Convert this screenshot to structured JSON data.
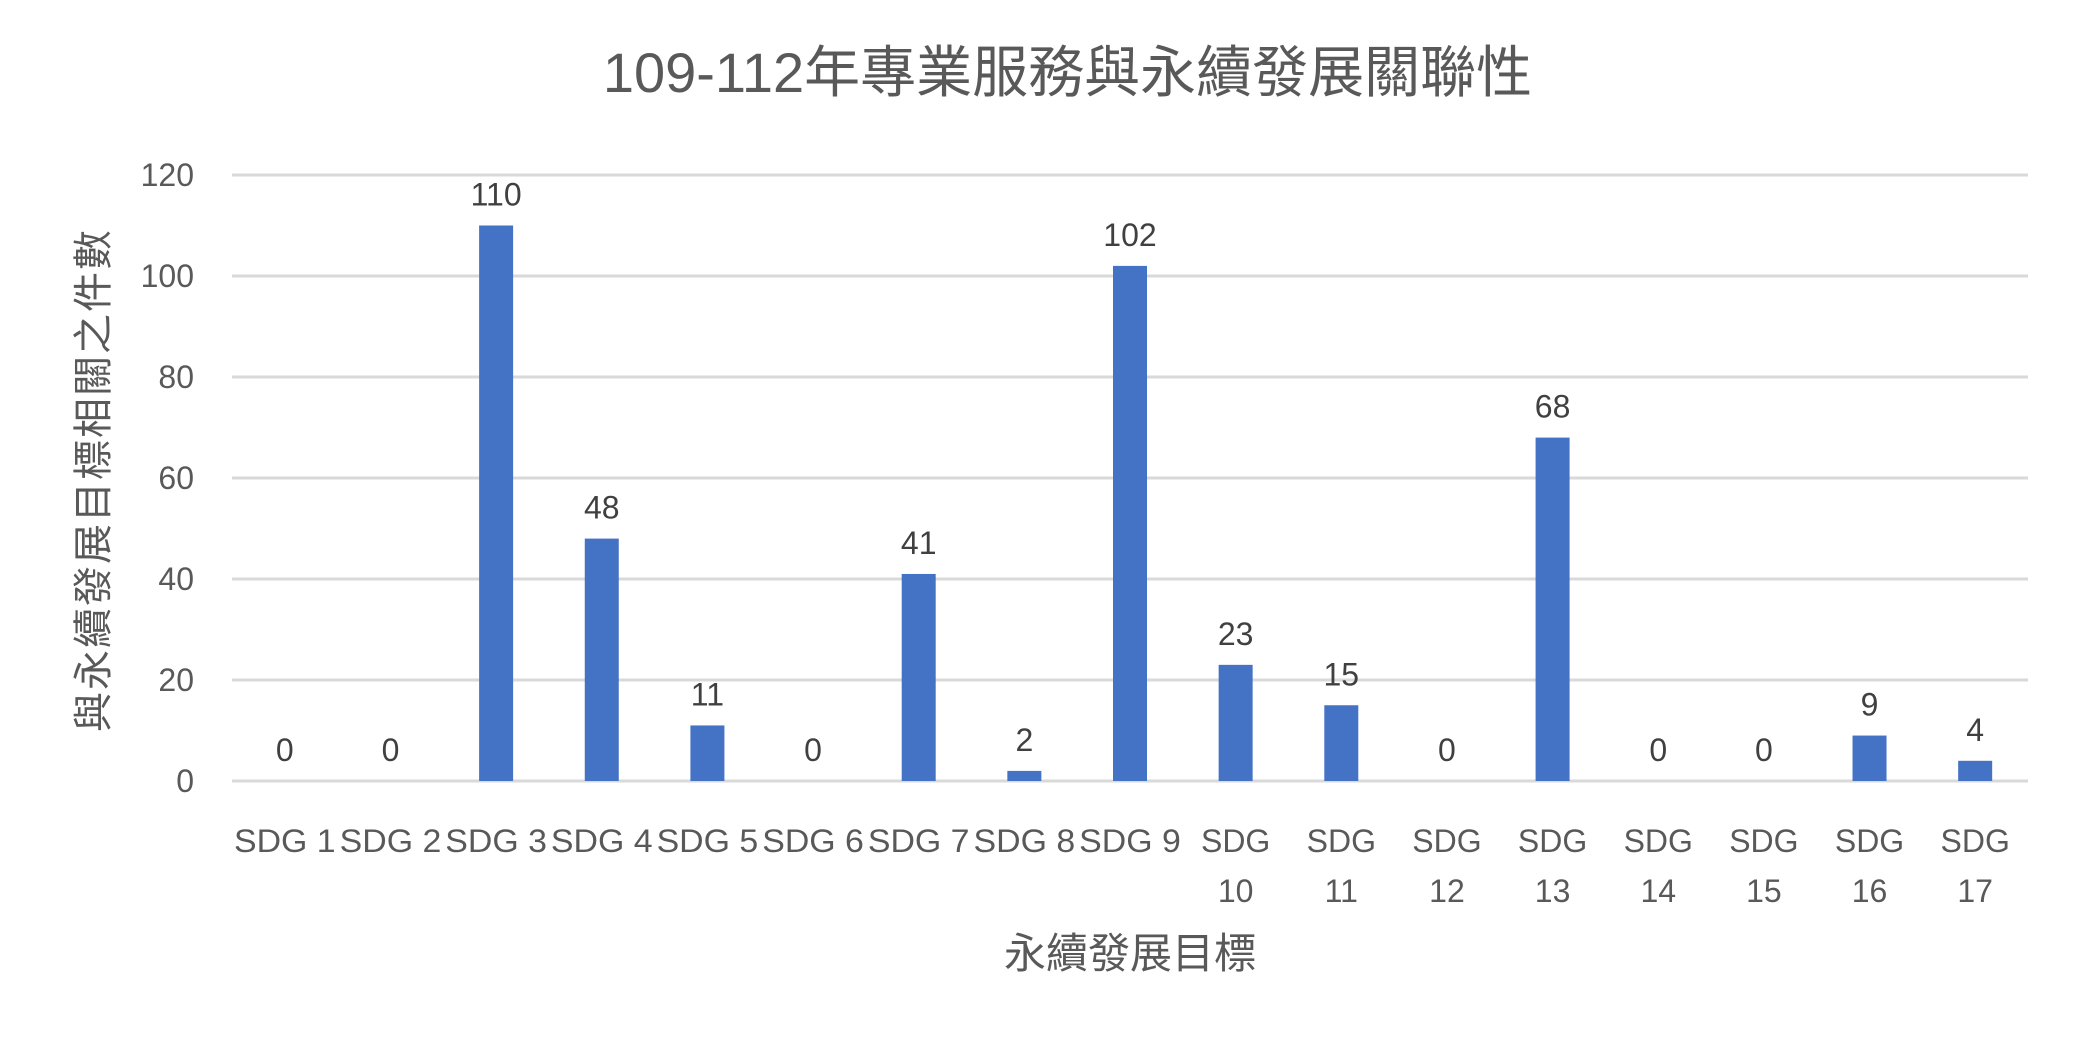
{
  "chart_data": {
    "type": "bar",
    "title": "109-112年專業服務與永續發展關聯性",
    "xlabel": "永續發展目標",
    "ylabel": "與永續發展目標相關之件數",
    "categories": [
      "SDG 1",
      "SDG 2",
      "SDG 3",
      "SDG 4",
      "SDG 5",
      "SDG 6",
      "SDG 7",
      "SDG 8",
      "SDG 9",
      "SDG 10",
      "SDG 11",
      "SDG 12",
      "SDG 13",
      "SDG 14",
      "SDG 15",
      "SDG 16",
      "SDG 17"
    ],
    "values": [
      0,
      0,
      110,
      48,
      11,
      0,
      41,
      2,
      102,
      23,
      15,
      0,
      68,
      0,
      0,
      9,
      4
    ],
    "ylim": [
      0,
      120
    ],
    "yticks": [
      0,
      20,
      40,
      60,
      80,
      100,
      120
    ],
    "grid": true,
    "legend": null,
    "data_labels": true,
    "bar_color": "#4472C4"
  },
  "colors": {
    "bar": "#4472C4",
    "gridline": "#D9D9D9",
    "axis_text": "#595959",
    "data_label": "#404040",
    "title": "#595959"
  }
}
